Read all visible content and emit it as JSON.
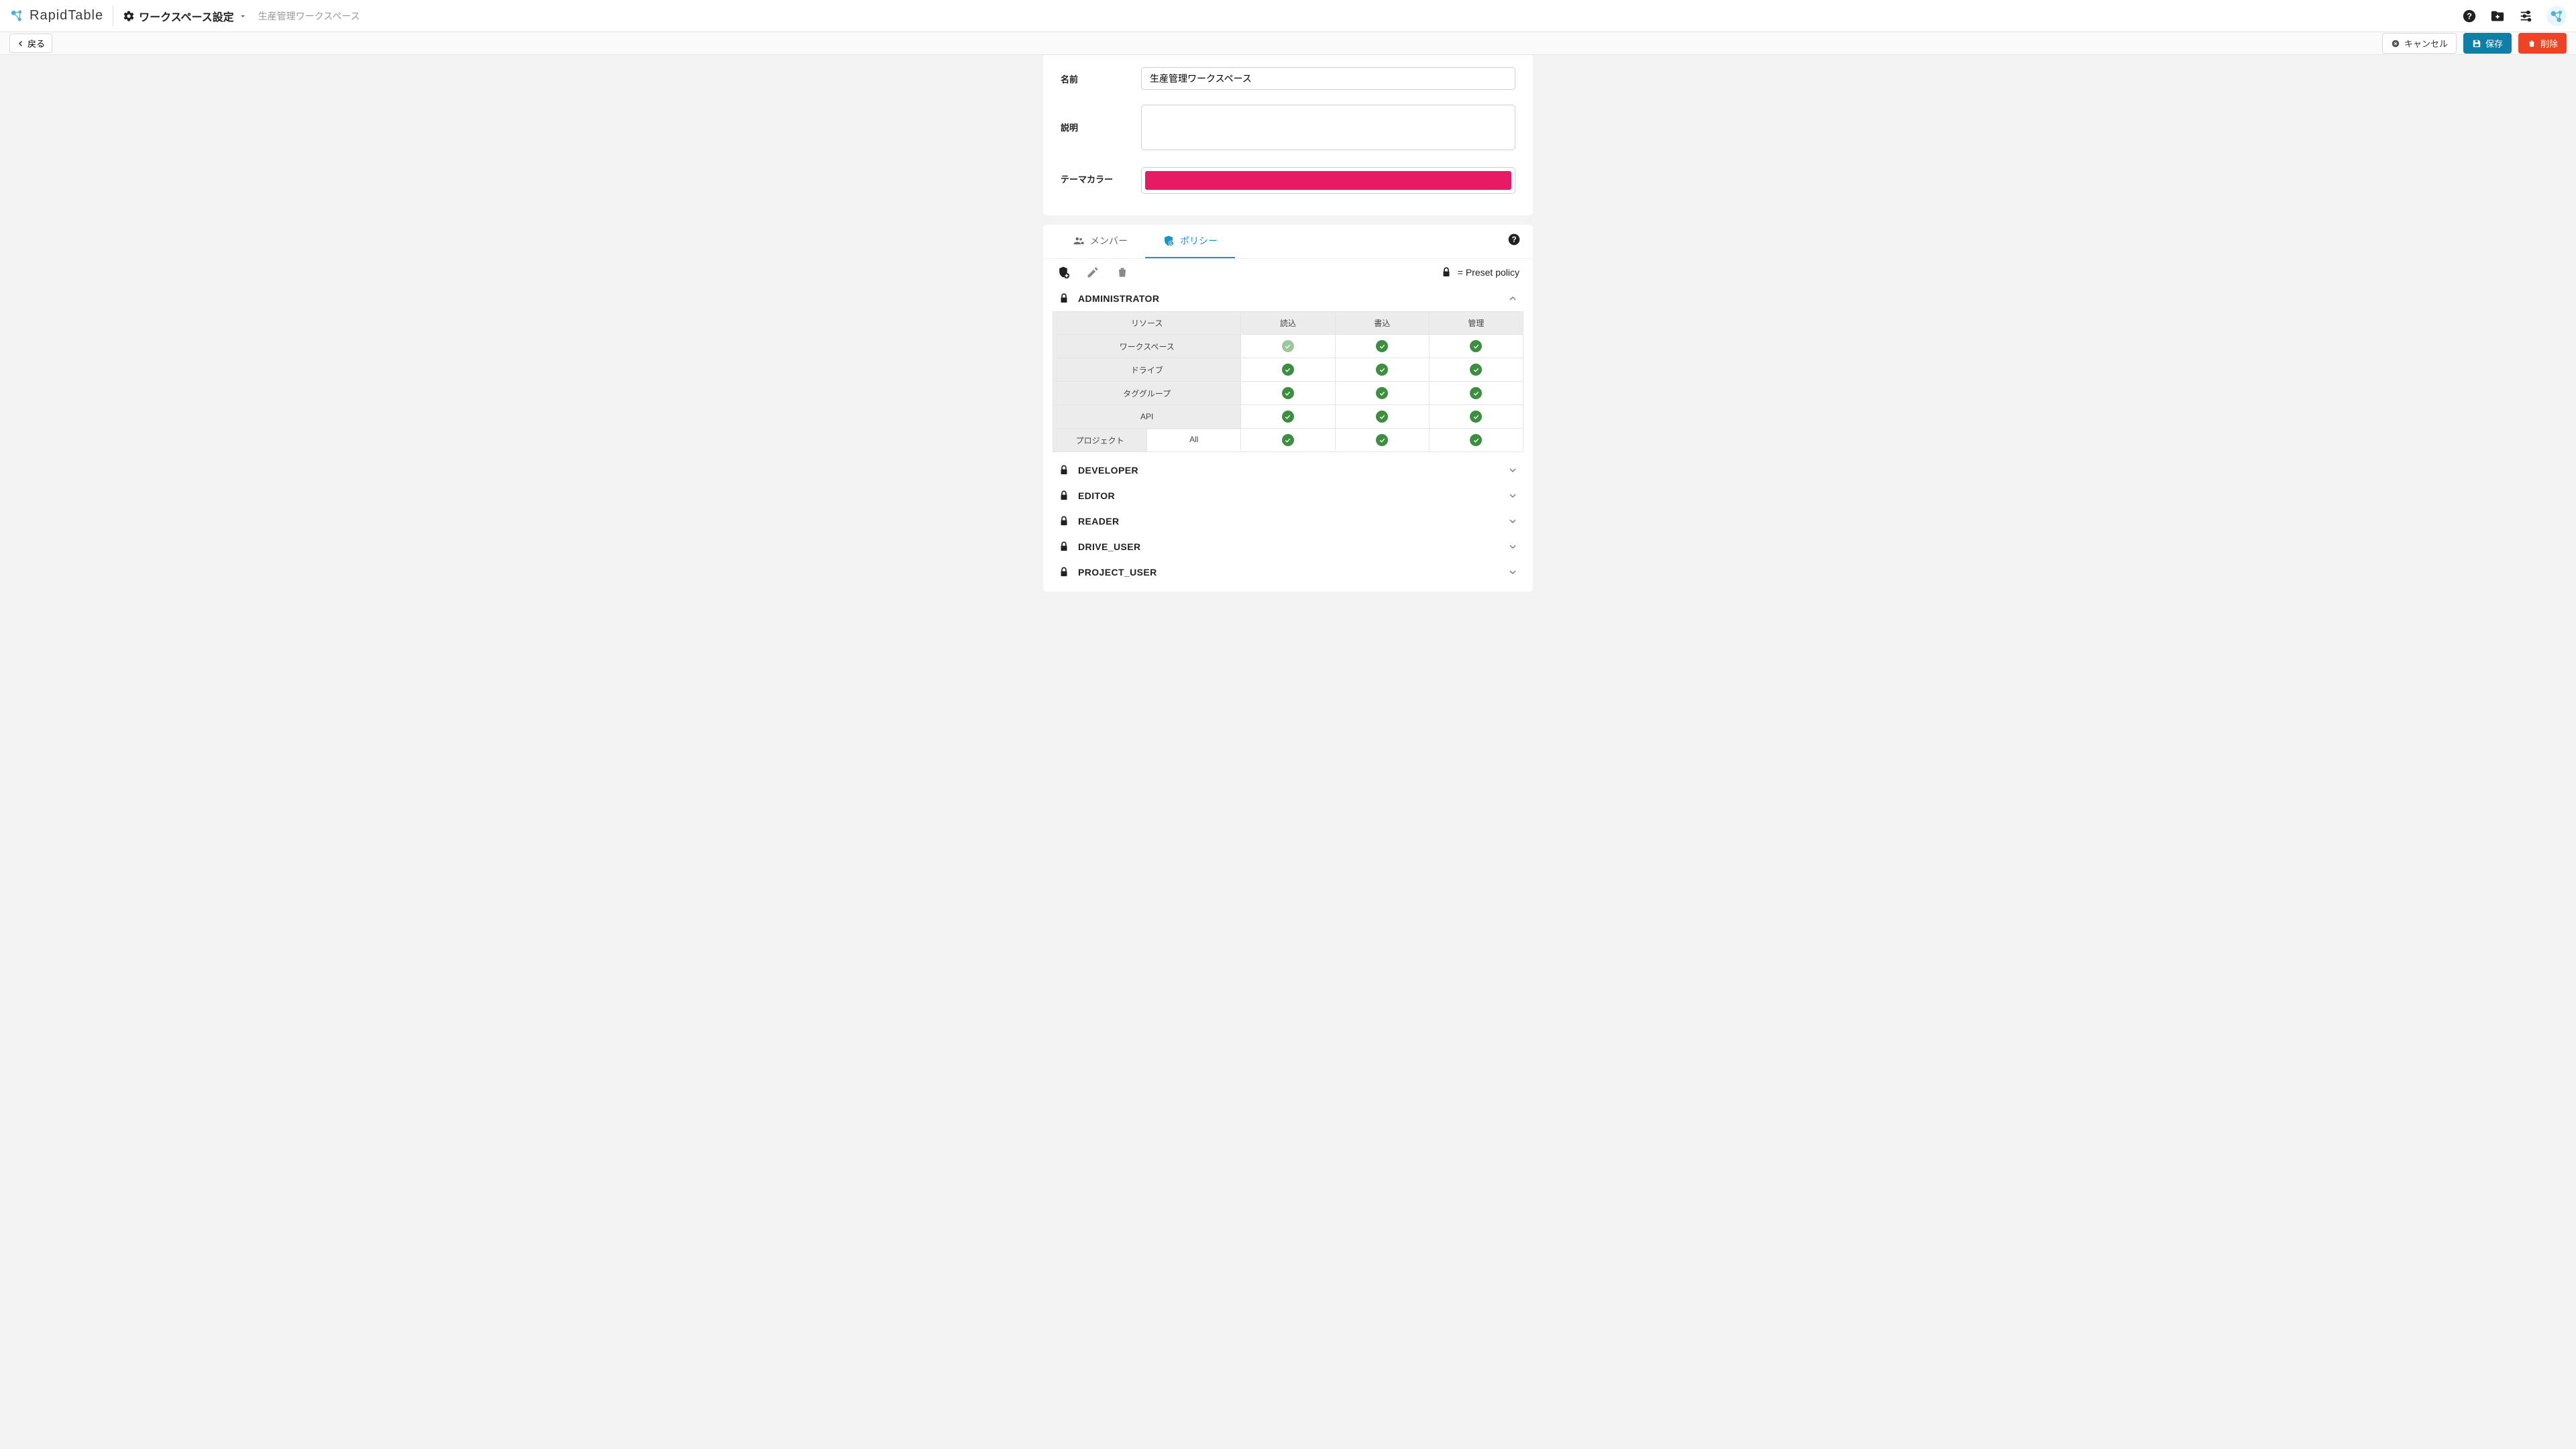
{
  "app": {
    "name": "RapidTable"
  },
  "header": {
    "page_title": "ワークスペース設定",
    "workspace_name": "生産管理ワークスペース"
  },
  "actions": {
    "back": "戻る",
    "cancel": "キャンセル",
    "save": "保存",
    "delete": "削除"
  },
  "form": {
    "name_label": "名前",
    "name_value": "生産管理ワークスペース",
    "desc_label": "説明",
    "desc_value": "",
    "theme_label": "テーマカラー",
    "theme_color": "#e61b64"
  },
  "tabs": {
    "members": "メンバー",
    "policies": "ポリシー"
  },
  "preset_legend": "= Preset policy",
  "policy_columns": {
    "resource": "リソース",
    "read": "読込",
    "write": "書込",
    "admin": "管理"
  },
  "admin_policy": {
    "name": "ADMINISTRATOR",
    "rows": [
      {
        "label": "ワークスペース",
        "read": "dim",
        "write": "on",
        "admin": "on"
      },
      {
        "label": "ドライブ",
        "read": "on",
        "write": "on",
        "admin": "on"
      },
      {
        "label": "タググループ",
        "read": "on",
        "write": "on",
        "admin": "on"
      },
      {
        "label": "API",
        "read": "on",
        "write": "on",
        "admin": "on"
      }
    ],
    "project": {
      "label": "プロジェクト",
      "scope": "All",
      "read": "on",
      "write": "on",
      "admin": "on"
    }
  },
  "collapsed_policies": [
    "DEVELOPER",
    "EDITOR",
    "READER",
    "DRIVE_USER",
    "PROJECT_USER"
  ],
  "colors": {
    "save_btn": "#0e7fa6",
    "delete_btn": "#ee4423",
    "active_tab": "#1796bf",
    "check_green": "#3b8f3e"
  }
}
